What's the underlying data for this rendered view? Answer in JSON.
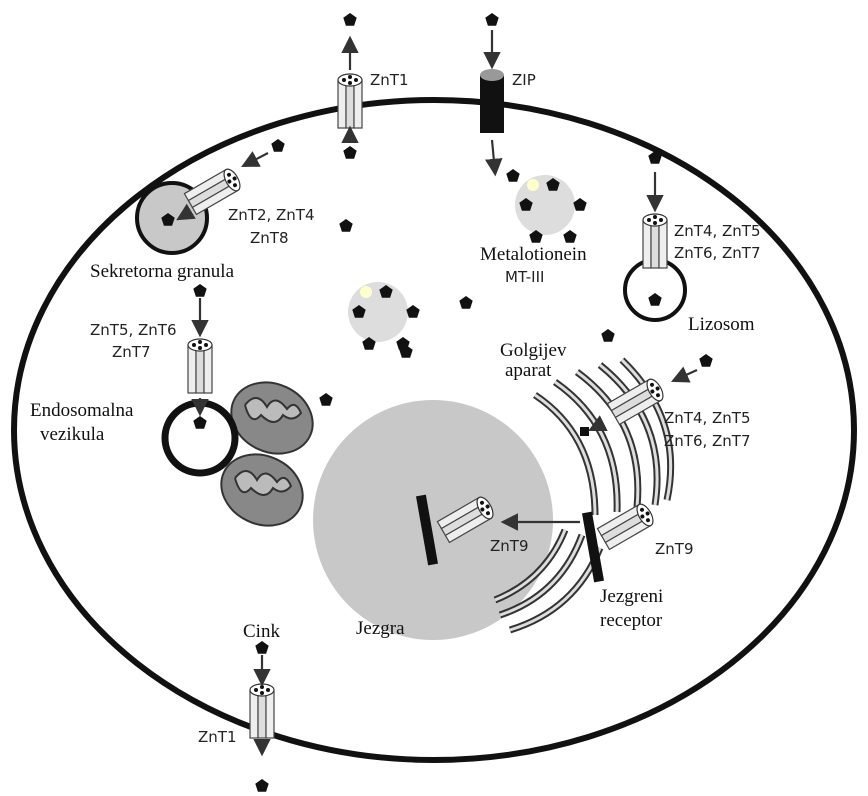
{
  "transporters": {
    "znt1_top": "ZnT1",
    "zip": "ZIP",
    "granula_line1": "ZnT2, ZnT4",
    "granula_line2": "ZnT8",
    "lizosom_line1": "ZnT4, ZnT5",
    "lizosom_line2": "ZnT6, ZnT7",
    "endosom_line1": "ZnT5, ZnT6",
    "endosom_line2": "ZnT7",
    "golgi_line1": "ZnT4, ZnT5",
    "golgi_line2": "ZnT6, ZnT7",
    "znt9_nucleus": "ZnT9",
    "znt9_receptor": "ZnT9",
    "znt1_bottom": "ZnT1"
  },
  "structures": {
    "sekretorna_granula": "Sekretorna granula",
    "metalotionein_line1": "Metalotionein",
    "metalotionein_line2": "MT-III",
    "lizosom": "Lizosom",
    "golgi_line1": "Golgijev",
    "golgi_line2": "aparat",
    "endosom_line1": "Endosomalna",
    "endosom_line2": "vezikula",
    "jezgra": "Jezgra",
    "receptor_line1": "Jezgreni",
    "receptor_line2": "receptor",
    "cink": "Cink"
  }
}
